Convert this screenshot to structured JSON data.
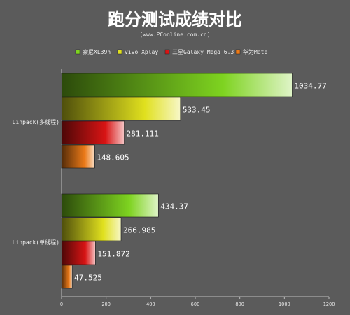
{
  "chart_data": {
    "type": "bar",
    "orientation": "horizontal",
    "title": "跑分测试成绩对比",
    "subtitle": "[www.PConline.com.cn]",
    "categories": [
      "Linpack(多线程)",
      "Linpack(单线程)"
    ],
    "series": [
      {
        "name": "索尼XL39h",
        "values": [
          1034.77,
          434.37
        ],
        "value_labels": [
          "1034.77",
          "434.37"
        ],
        "color": "#7ed320"
      },
      {
        "name": "vivo Xplay",
        "values": [
          533.45,
          266.985
        ],
        "value_labels": [
          "533.45",
          "266.985"
        ],
        "color": "#e0e01e"
      },
      {
        "name": "三星Galaxy Mega 6.3",
        "values": [
          281.111,
          151.872
        ],
        "value_labels": [
          "281.111",
          "151.872"
        ],
        "color": "#d81414"
      },
      {
        "name": "华为Mate",
        "values": [
          148.605,
          47.525
        ],
        "value_labels": [
          "148.605",
          "47.525"
        ],
        "color": "#ec7a18"
      }
    ],
    "xlim": [
      0,
      1200
    ],
    "xticks": [
      0,
      200,
      400,
      600,
      800,
      1000,
      1200
    ],
    "xtick_labels": [
      "0",
      "200",
      "400",
      "600",
      "800",
      "1000",
      "1200"
    ],
    "legend": "top",
    "grid": false,
    "background": "#5b5b5b"
  }
}
